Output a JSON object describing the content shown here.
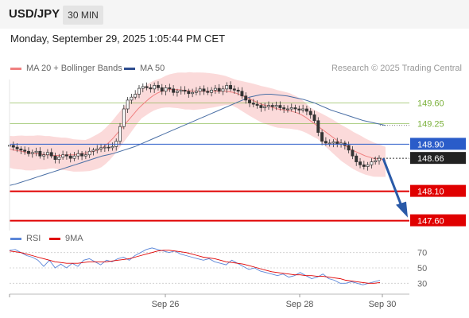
{
  "header": {
    "symbol": "USD/JPY",
    "timeframe": "30 MIN",
    "datetime": "Monday, September 29, 2025 1:05:44 PM CET"
  },
  "legend": {
    "ma20_label": "MA 20 + Bollinger Bands",
    "ma50_label": "MA 50",
    "copyright": "Research © 2025 Trading Central"
  },
  "rsi_legend": {
    "rsi_label": "RSI",
    "ma_label": "9MA"
  },
  "colors": {
    "candle": "#333333",
    "ma20": "#f08080",
    "bollinger_fill": "#fbd6d6",
    "ma50": "#4a6fa5",
    "resistance": "#7ab03a",
    "support": "#e00000",
    "current_level": "#2a5cc9",
    "arrow": "#2a5aa8",
    "rsi": "#5b86d8",
    "rsi_ma": "#e00000"
  },
  "chart_data": [
    {
      "type": "candlestick",
      "title": "USD/JPY 30 MIN",
      "ylim": [
        147.5,
        150.0
      ],
      "x_labels": [
        "Sep 26",
        "Sep 28",
        "Sep 30"
      ],
      "price_levels": [
        {
          "value": 149.6,
          "label": "149.60",
          "kind": "resistance"
        },
        {
          "value": 149.25,
          "label": "149.25",
          "kind": "resistance"
        },
        {
          "value": 148.9,
          "label": "148.90",
          "kind": "pivot"
        },
        {
          "value": 148.66,
          "label": "148.66",
          "kind": "last"
        },
        {
          "value": 148.1,
          "label": "148.10",
          "kind": "support"
        },
        {
          "value": 147.6,
          "label": "147.60",
          "kind": "support"
        }
      ],
      "forecast_arrow": {
        "from": 148.66,
        "to": 147.6
      },
      "close": [
        148.88,
        148.85,
        148.82,
        148.8,
        148.78,
        148.74,
        148.76,
        148.78,
        148.7,
        148.72,
        148.76,
        148.7,
        148.64,
        148.68,
        148.72,
        148.7,
        148.66,
        148.7,
        148.74,
        148.7,
        148.72,
        148.78,
        148.8,
        148.82,
        148.84,
        148.85,
        148.84,
        148.86,
        148.95,
        149.2,
        149.5,
        149.65,
        149.7,
        149.75,
        149.85,
        149.88,
        149.86,
        149.84,
        149.9,
        149.86,
        149.8,
        149.86,
        149.84,
        149.78,
        149.8,
        149.82,
        149.8,
        149.76,
        149.78,
        149.8,
        149.84,
        149.8,
        149.78,
        149.82,
        149.85,
        149.8,
        149.84,
        149.9,
        149.84,
        149.82,
        149.8,
        149.72,
        149.65,
        149.6,
        149.58,
        149.56,
        149.52,
        149.54,
        149.56,
        149.54,
        149.56,
        149.52,
        149.5,
        149.5,
        149.52,
        149.5,
        149.48,
        149.5,
        149.46,
        149.4,
        149.3,
        149.1,
        148.95,
        148.92,
        148.92,
        148.94,
        148.9,
        148.92,
        148.88,
        148.8,
        148.7,
        148.6,
        148.55,
        148.52,
        148.55,
        148.6,
        148.62,
        148.66
      ],
      "ma20": [
        148.82,
        148.8,
        148.79,
        148.78,
        148.76,
        148.75,
        148.74,
        148.74,
        148.73,
        148.72,
        148.72,
        148.71,
        148.71,
        148.71,
        148.72,
        148.72,
        148.72,
        148.73,
        148.74,
        148.75,
        148.76,
        148.78,
        148.8,
        148.83,
        148.88,
        148.94,
        149.01,
        149.09,
        149.17,
        149.25,
        149.33,
        149.41,
        149.49,
        149.56,
        149.62,
        149.68,
        149.73,
        149.77,
        149.8,
        149.82,
        149.83,
        149.83,
        149.83,
        149.82,
        149.81,
        149.81,
        149.8,
        149.8,
        149.8,
        149.8,
        149.8,
        149.8,
        149.8,
        149.8,
        149.8,
        149.79,
        149.78,
        149.76,
        149.73,
        149.7,
        149.67,
        149.64,
        149.61,
        149.58,
        149.56,
        149.54,
        149.52,
        149.5,
        149.49,
        149.48,
        149.47,
        149.45,
        149.43,
        149.4,
        149.36,
        149.31,
        149.26,
        149.21,
        149.16,
        149.11,
        149.06,
        149.01,
        148.96,
        148.91,
        148.87,
        148.83,
        148.79,
        148.76,
        148.73,
        148.7,
        148.68,
        148.66,
        148.65,
        148.64,
        148.63
      ],
      "ma50": [
        148.2,
        148.22,
        148.25,
        148.28,
        148.31,
        148.34,
        148.37,
        148.4,
        148.43,
        148.46,
        148.49,
        148.52,
        148.55,
        148.58,
        148.61,
        148.64,
        148.67,
        148.7,
        148.72,
        148.74,
        148.77,
        148.8,
        148.83,
        148.86,
        148.9,
        148.94,
        148.98,
        149.02,
        149.06,
        149.1,
        149.14,
        149.18,
        149.22,
        149.26,
        149.3,
        149.34,
        149.38,
        149.42,
        149.46,
        149.5,
        149.54,
        149.58,
        149.62,
        149.66,
        149.7,
        149.72,
        149.74,
        149.75,
        149.75,
        149.74,
        149.73,
        149.72,
        149.7,
        149.68,
        149.66,
        149.63,
        149.6,
        149.56,
        149.52,
        149.48,
        149.45,
        149.42,
        149.39,
        149.36,
        149.33,
        149.3,
        149.28,
        149.26,
        149.24,
        149.22
      ]
    },
    {
      "type": "line",
      "title": "RSI",
      "ylim": [
        20,
        80
      ],
      "y_ticks": [
        70,
        50,
        30
      ],
      "series": [
        {
          "name": "RSI",
          "values": [
            73,
            74,
            70,
            66,
            64,
            60,
            52,
            60,
            50,
            55,
            50,
            56,
            52,
            60,
            62,
            58,
            54,
            60,
            58,
            62,
            64,
            60,
            66,
            70,
            74,
            76,
            74,
            72,
            70,
            72,
            68,
            66,
            64,
            62,
            60,
            62,
            58,
            56,
            54,
            60,
            56,
            52,
            48,
            50,
            46,
            44,
            42,
            40,
            42,
            38,
            40,
            44,
            40,
            36,
            38,
            42,
            36,
            34,
            30,
            30,
            32,
            30,
            28,
            30,
            32,
            34
          ]
        },
        {
          "name": "9MA",
          "values": [
            72,
            71,
            70,
            68,
            66,
            64,
            62,
            60,
            58,
            57,
            56,
            56,
            56,
            57,
            58,
            58,
            58,
            58,
            59,
            60,
            61,
            62,
            64,
            66,
            68,
            70,
            72,
            73,
            73,
            72,
            71,
            70,
            68,
            66,
            64,
            63,
            62,
            60,
            58,
            57,
            56,
            55,
            53,
            51,
            49,
            47,
            45,
            44,
            43,
            42,
            41,
            41,
            40,
            40,
            39,
            39,
            38,
            37,
            36,
            34,
            33,
            32,
            31,
            30,
            30,
            31
          ]
        }
      ]
    }
  ]
}
